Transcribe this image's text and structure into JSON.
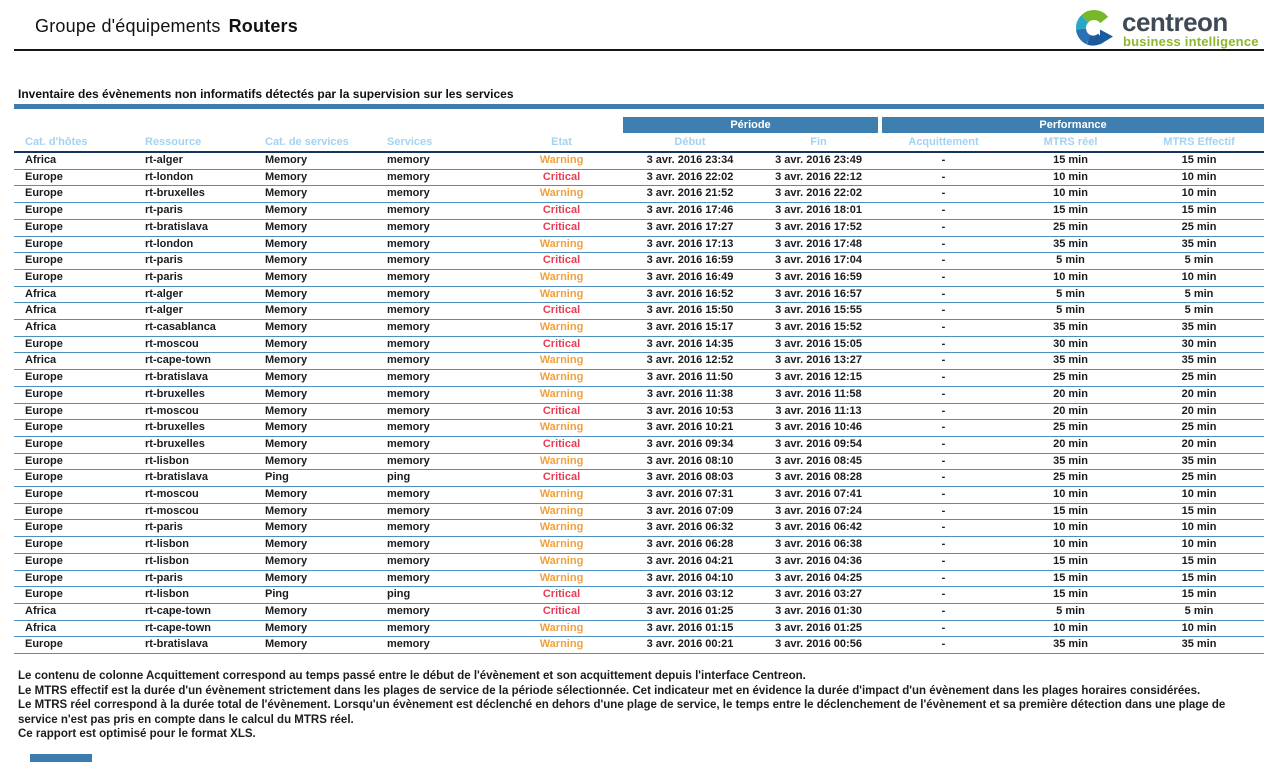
{
  "header": {
    "title_prefix": "Groupe d'équipements",
    "title_bold": "Routers",
    "logo": {
      "brand": "centreon",
      "tagline": "business intelligence"
    }
  },
  "section": {
    "title": "Inventaire des évènements non informatifs détectés par la supervision sur les services"
  },
  "table": {
    "group_headers": [
      {
        "label": "Période",
        "colspan": 2
      },
      {
        "label": "Performance",
        "colspan": 3
      }
    ],
    "columns": [
      "Cat. d'hôtes",
      "Ressource",
      "Cat. de services",
      "Services",
      "Etat",
      "Début",
      "Fin",
      "Acquittement",
      "MTRS réel",
      "MTRS Effectif"
    ],
    "column_keys": [
      "host-category",
      "resource",
      "service-category",
      "service",
      "state",
      "start",
      "end",
      "acknowledgement",
      "mtrs-real",
      "mtrs-effective"
    ],
    "rows": [
      [
        "Africa",
        "rt-alger",
        "Memory",
        "memory",
        "Warning",
        "3 avr. 2016 23:34",
        "3 avr. 2016 23:49",
        "-",
        "15 min",
        "15 min"
      ],
      [
        "Europe",
        "rt-london",
        "Memory",
        "memory",
        "Critical",
        "3 avr. 2016 22:02",
        "3 avr. 2016 22:12",
        "-",
        "10 min",
        "10 min"
      ],
      [
        "Europe",
        "rt-bruxelles",
        "Memory",
        "memory",
        "Warning",
        "3 avr. 2016 21:52",
        "3 avr. 2016 22:02",
        "-",
        "10 min",
        "10 min"
      ],
      [
        "Europe",
        "rt-paris",
        "Memory",
        "memory",
        "Critical",
        "3 avr. 2016 17:46",
        "3 avr. 2016 18:01",
        "-",
        "15 min",
        "15 min"
      ],
      [
        "Europe",
        "rt-bratislava",
        "Memory",
        "memory",
        "Critical",
        "3 avr. 2016 17:27",
        "3 avr. 2016 17:52",
        "-",
        "25 min",
        "25 min"
      ],
      [
        "Europe",
        "rt-london",
        "Memory",
        "memory",
        "Warning",
        "3 avr. 2016 17:13",
        "3 avr. 2016 17:48",
        "-",
        "35 min",
        "35 min"
      ],
      [
        "Europe",
        "rt-paris",
        "Memory",
        "memory",
        "Critical",
        "3 avr. 2016 16:59",
        "3 avr. 2016 17:04",
        "-",
        "5 min",
        "5 min"
      ],
      [
        "Europe",
        "rt-paris",
        "Memory",
        "memory",
        "Warning",
        "3 avr. 2016 16:49",
        "3 avr. 2016 16:59",
        "-",
        "10 min",
        "10 min"
      ],
      [
        "Africa",
        "rt-alger",
        "Memory",
        "memory",
        "Warning",
        "3 avr. 2016 16:52",
        "3 avr. 2016 16:57",
        "-",
        "5 min",
        "5 min"
      ],
      [
        "Africa",
        "rt-alger",
        "Memory",
        "memory",
        "Critical",
        "3 avr. 2016 15:50",
        "3 avr. 2016 15:55",
        "-",
        "5 min",
        "5 min"
      ],
      [
        "Africa",
        "rt-casablanca",
        "Memory",
        "memory",
        "Warning",
        "3 avr. 2016 15:17",
        "3 avr. 2016 15:52",
        "-",
        "35 min",
        "35 min"
      ],
      [
        "Europe",
        "rt-moscou",
        "Memory",
        "memory",
        "Critical",
        "3 avr. 2016 14:35",
        "3 avr. 2016 15:05",
        "-",
        "30 min",
        "30 min"
      ],
      [
        "Africa",
        "rt-cape-town",
        "Memory",
        "memory",
        "Warning",
        "3 avr. 2016 12:52",
        "3 avr. 2016 13:27",
        "-",
        "35 min",
        "35 min"
      ],
      [
        "Europe",
        "rt-bratislava",
        "Memory",
        "memory",
        "Warning",
        "3 avr. 2016 11:50",
        "3 avr. 2016 12:15",
        "-",
        "25 min",
        "25 min"
      ],
      [
        "Europe",
        "rt-bruxelles",
        "Memory",
        "memory",
        "Warning",
        "3 avr. 2016 11:38",
        "3 avr. 2016 11:58",
        "-",
        "20 min",
        "20 min"
      ],
      [
        "Europe",
        "rt-moscou",
        "Memory",
        "memory",
        "Critical",
        "3 avr. 2016 10:53",
        "3 avr. 2016 11:13",
        "-",
        "20 min",
        "20 min"
      ],
      [
        "Europe",
        "rt-bruxelles",
        "Memory",
        "memory",
        "Warning",
        "3 avr. 2016 10:21",
        "3 avr. 2016 10:46",
        "-",
        "25 min",
        "25 min"
      ],
      [
        "Europe",
        "rt-bruxelles",
        "Memory",
        "memory",
        "Critical",
        "3 avr. 2016 09:34",
        "3 avr. 2016 09:54",
        "-",
        "20 min",
        "20 min"
      ],
      [
        "Europe",
        "rt-lisbon",
        "Memory",
        "memory",
        "Warning",
        "3 avr. 2016 08:10",
        "3 avr. 2016 08:45",
        "-",
        "35 min",
        "35 min"
      ],
      [
        "Europe",
        "rt-bratislava",
        "Ping",
        "ping",
        "Critical",
        "3 avr. 2016 08:03",
        "3 avr. 2016 08:28",
        "-",
        "25 min",
        "25 min"
      ],
      [
        "Europe",
        "rt-moscou",
        "Memory",
        "memory",
        "Warning",
        "3 avr. 2016 07:31",
        "3 avr. 2016 07:41",
        "-",
        "10 min",
        "10 min"
      ],
      [
        "Europe",
        "rt-moscou",
        "Memory",
        "memory",
        "Warning",
        "3 avr. 2016 07:09",
        "3 avr. 2016 07:24",
        "-",
        "15 min",
        "15 min"
      ],
      [
        "Europe",
        "rt-paris",
        "Memory",
        "memory",
        "Warning",
        "3 avr. 2016 06:32",
        "3 avr. 2016 06:42",
        "-",
        "10 min",
        "10 min"
      ],
      [
        "Europe",
        "rt-lisbon",
        "Memory",
        "memory",
        "Warning",
        "3 avr. 2016 06:28",
        "3 avr. 2016 06:38",
        "-",
        "10 min",
        "10 min"
      ],
      [
        "Europe",
        "rt-lisbon",
        "Memory",
        "memory",
        "Warning",
        "3 avr. 2016 04:21",
        "3 avr. 2016 04:36",
        "-",
        "15 min",
        "15 min"
      ],
      [
        "Europe",
        "rt-paris",
        "Memory",
        "memory",
        "Warning",
        "3 avr. 2016 04:10",
        "3 avr. 2016 04:25",
        "-",
        "15 min",
        "15 min"
      ],
      [
        "Europe",
        "rt-lisbon",
        "Ping",
        "ping",
        "Critical",
        "3 avr. 2016 03:12",
        "3 avr. 2016 03:27",
        "-",
        "15 min",
        "15 min"
      ],
      [
        "Africa",
        "rt-cape-town",
        "Memory",
        "memory",
        "Critical",
        "3 avr. 2016 01:25",
        "3 avr. 2016 01:30",
        "-",
        "5 min",
        "5 min"
      ],
      [
        "Africa",
        "rt-cape-town",
        "Memory",
        "memory",
        "Warning",
        "3 avr. 2016 01:15",
        "3 avr. 2016 01:25",
        "-",
        "10 min",
        "10 min"
      ],
      [
        "Europe",
        "rt-bratislava",
        "Memory",
        "memory",
        "Warning",
        "3 avr. 2016 00:21",
        "3 avr. 2016 00:56",
        "-",
        "35 min",
        "35 min"
      ]
    ]
  },
  "footer": {
    "notes": [
      "Le contenu de colonne Acquittement correspond au temps passé entre le début de l'évènement et son acquittement depuis l'interface Centreon.",
      "Le MTRS effectif est la durée d'un évènement strictement dans les plages de service de la période sélectionnée. Cet indicateur met en évidence la durée d'impact d'un évènement dans les plages horaires considérées.",
      "Le MTRS réel correspond à la durée total de l'évènement. Lorsqu'un évènement est déclenché en dehors d'une plage de service, le temps entre le déclenchement de l'évènement et sa première détection dans une plage de",
      "service n'est pas pris en compte dans le calcul du MTRS réel.",
      "Ce rapport est optimisé pour le format XLS."
    ]
  },
  "colors": {
    "header_band": "#3E7FAF",
    "section_bar": "#3C7CAE",
    "subheader_text": "#A3D3EF",
    "row_separator": "#4E8FC0",
    "header_underline": "#17365D",
    "warning": "#F2A03B",
    "critical": "#E93D55",
    "brand_dark": "#3F4A55",
    "brand_green": "#8CB72E"
  }
}
